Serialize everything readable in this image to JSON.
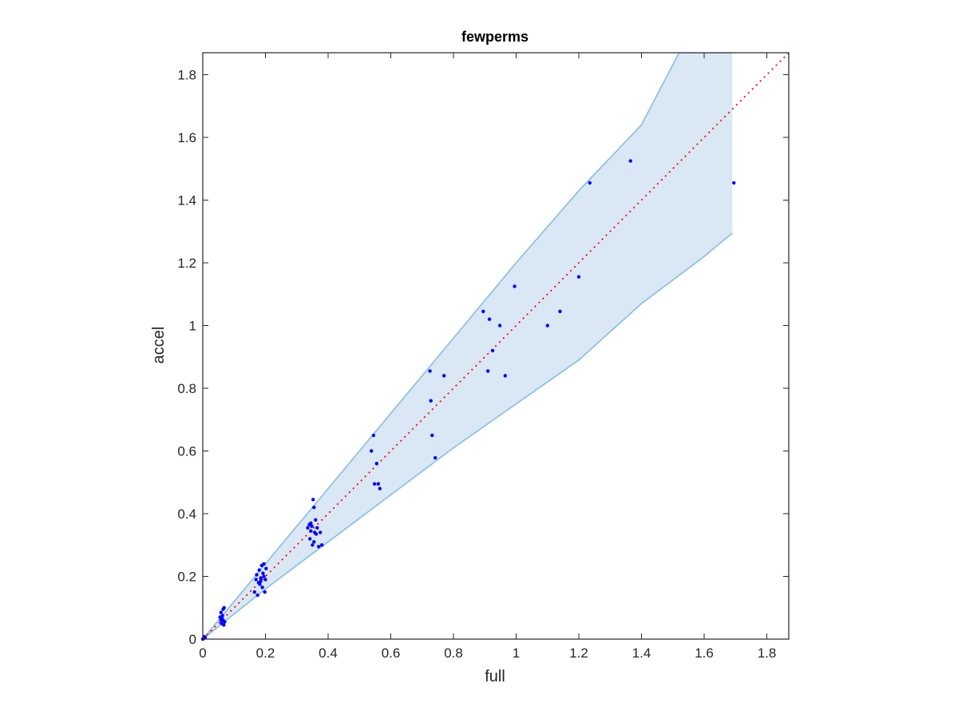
{
  "chart_data": {
    "type": "scatter",
    "title": "fewperms",
    "xlabel": "full",
    "ylabel": "accel",
    "xlim": [
      0,
      1.87
    ],
    "ylim": [
      0,
      1.87
    ],
    "xticks": [
      "0",
      "0.2",
      "0.4",
      "0.6",
      "0.8",
      "1",
      "1.2",
      "1.4",
      "1.6",
      "1.8"
    ],
    "yticks": [
      "0",
      "0.2",
      "0.4",
      "0.6",
      "0.8",
      "1",
      "1.2",
      "1.4",
      "1.6",
      "1.8"
    ],
    "grid": false,
    "box": true,
    "reference_line": {
      "style": "dotted",
      "color": "#ff0000",
      "from": [
        0,
        0
      ],
      "to": [
        1.87,
        1.87
      ]
    },
    "band": {
      "fill": "#d9e8f4",
      "edge": "#86bde0",
      "upper": {
        "x": [
          0,
          0.2,
          0.4,
          0.6,
          0.8,
          1.0,
          1.2,
          1.4,
          1.52,
          1.69
        ],
        "y": [
          0,
          0.24,
          0.48,
          0.72,
          0.96,
          1.2,
          1.43,
          1.64,
          1.87,
          1.87
        ]
      },
      "lower": {
        "x": [
          0,
          0.2,
          0.4,
          0.6,
          0.8,
          1.0,
          1.2,
          1.4,
          1.6,
          1.69
        ],
        "y": [
          0,
          0.16,
          0.31,
          0.46,
          0.61,
          0.75,
          0.89,
          1.07,
          1.22,
          1.295
        ]
      }
    },
    "series": [
      {
        "color": "#0000ff",
        "points": [
          [
            0.0,
            0.0
          ],
          [
            0.003,
            0.003
          ],
          [
            0.005,
            0.008
          ],
          [
            0.008,
            0.005
          ],
          [
            0.055,
            0.07
          ],
          [
            0.058,
            0.085
          ],
          [
            0.06,
            0.05
          ],
          [
            0.062,
            0.065
          ],
          [
            0.065,
            0.095
          ],
          [
            0.065,
            0.06
          ],
          [
            0.067,
            0.045
          ],
          [
            0.07,
            0.055
          ],
          [
            0.058,
            0.06
          ],
          [
            0.063,
            0.075
          ],
          [
            0.068,
            0.1
          ],
          [
            0.165,
            0.15
          ],
          [
            0.17,
            0.19
          ],
          [
            0.172,
            0.205
          ],
          [
            0.175,
            0.14
          ],
          [
            0.178,
            0.18
          ],
          [
            0.18,
            0.22
          ],
          [
            0.182,
            0.175
          ],
          [
            0.185,
            0.195
          ],
          [
            0.188,
            0.235
          ],
          [
            0.19,
            0.165
          ],
          [
            0.192,
            0.21
          ],
          [
            0.195,
            0.2
          ],
          [
            0.198,
            0.15
          ],
          [
            0.2,
            0.19
          ],
          [
            0.202,
            0.225
          ],
          [
            0.185,
            0.185
          ],
          [
            0.195,
            0.24
          ],
          [
            0.335,
            0.355
          ],
          [
            0.34,
            0.365
          ],
          [
            0.342,
            0.32
          ],
          [
            0.345,
            0.345
          ],
          [
            0.348,
            0.36
          ],
          [
            0.35,
            0.3
          ],
          [
            0.352,
            0.445
          ],
          [
            0.355,
            0.42
          ],
          [
            0.357,
            0.34
          ],
          [
            0.36,
            0.38
          ],
          [
            0.362,
            0.335
          ],
          [
            0.365,
            0.355
          ],
          [
            0.37,
            0.295
          ],
          [
            0.375,
            0.34
          ],
          [
            0.38,
            0.3
          ],
          [
            0.345,
            0.37
          ],
          [
            0.355,
            0.31
          ],
          [
            0.538,
            0.6
          ],
          [
            0.545,
            0.65
          ],
          [
            0.548,
            0.495
          ],
          [
            0.555,
            0.56
          ],
          [
            0.56,
            0.495
          ],
          [
            0.565,
            0.48
          ],
          [
            0.725,
            0.855
          ],
          [
            0.728,
            0.76
          ],
          [
            0.732,
            0.65
          ],
          [
            0.742,
            0.578
          ],
          [
            0.77,
            0.84
          ],
          [
            0.895,
            1.045
          ],
          [
            0.91,
            0.855
          ],
          [
            0.915,
            1.02
          ],
          [
            0.925,
            0.92
          ],
          [
            0.948,
            1.0
          ],
          [
            0.965,
            0.84
          ],
          [
            0.995,
            1.125
          ],
          [
            1.1,
            1.0
          ],
          [
            1.14,
            1.045
          ],
          [
            1.2,
            1.155
          ],
          [
            1.235,
            1.455
          ],
          [
            1.365,
            1.525
          ],
          [
            1.695,
            1.455
          ]
        ]
      }
    ]
  }
}
